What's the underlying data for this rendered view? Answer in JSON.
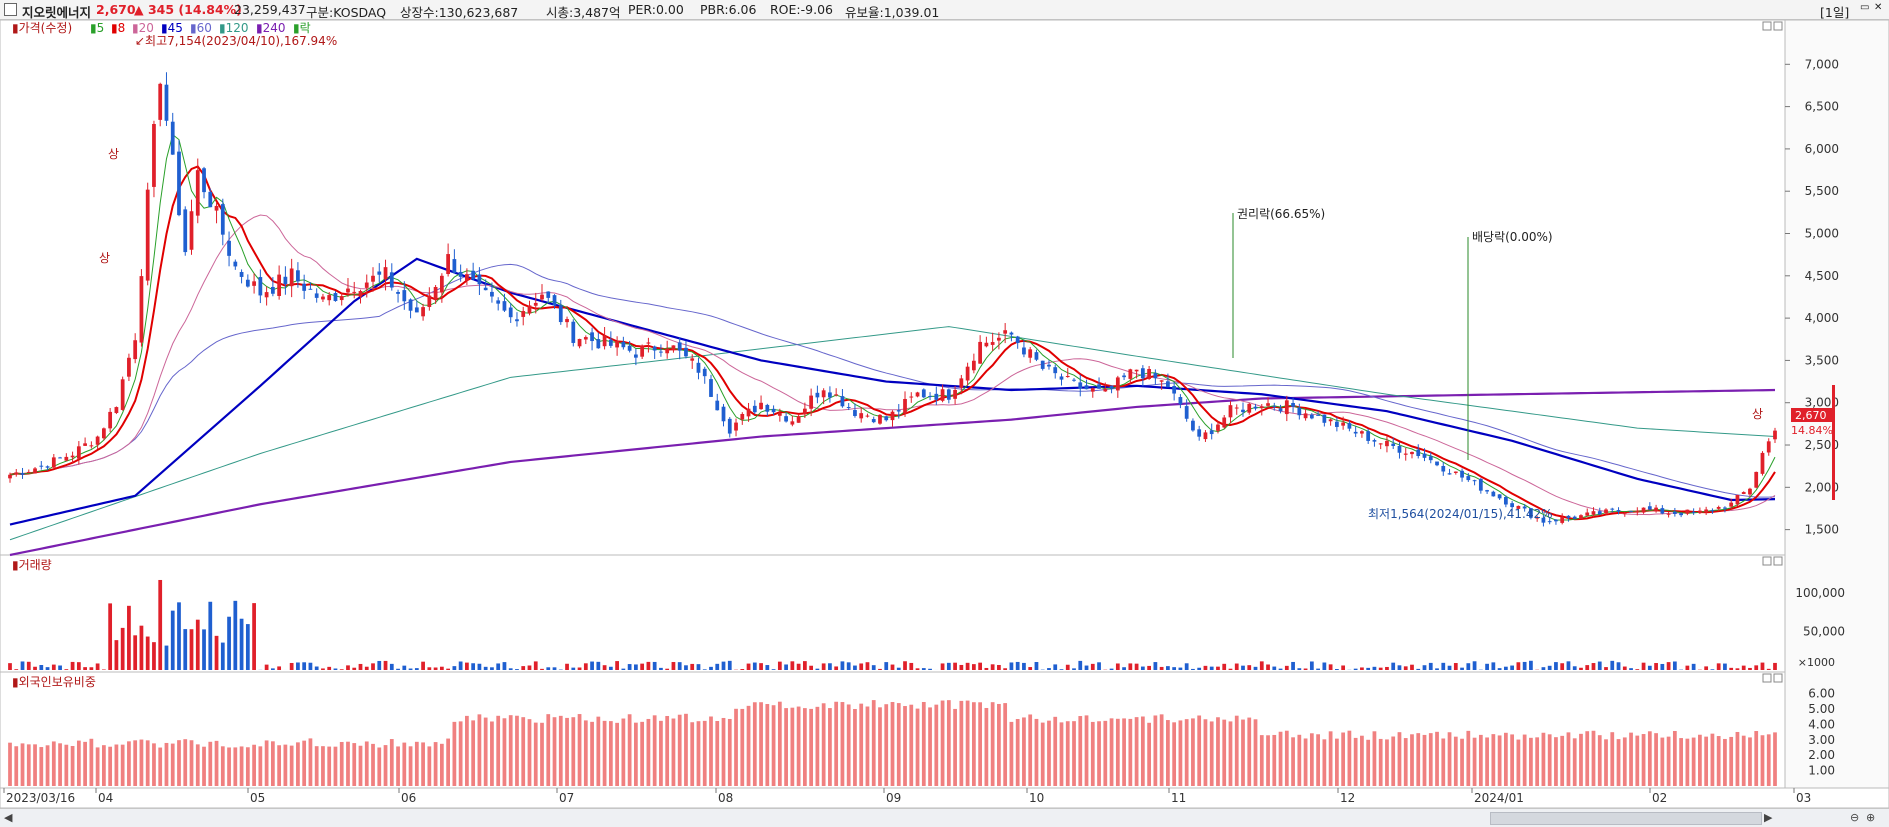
{
  "header": {
    "stock_name": "지오릿에너지",
    "price": "2,670",
    "change": "▲ 345 (14.84%)",
    "volume": "23,259,437",
    "market": "구분:KOSDAQ",
    "shares": "상장수:130,623,687",
    "mcap": "시총:3,487억",
    "per": "PER:0.00",
    "pbr": "PBR:6.06",
    "roe": "ROE:-9.06",
    "reserve": "유보율:1,039.01",
    "period_btn": "[1일]"
  },
  "legend": {
    "price_label": "가격(수정)",
    "ma": [
      {
        "label": "5",
        "color": "#2aa02a"
      },
      {
        "label": "8",
        "color": "#e00000"
      },
      {
        "label": "20",
        "color": "#cc6699"
      },
      {
        "label": "45",
        "color": "#0000c0"
      },
      {
        "label": "60",
        "color": "#6666cc"
      },
      {
        "label": "120",
        "color": "#339988"
      },
      {
        "label": "240",
        "color": "#7a1fb0"
      }
    ],
    "ex_label": "락"
  },
  "annotations": {
    "high": "최고7,154(2023/04/10),167.94%",
    "low": "최저1,564(2024/01/15),41.42%",
    "rights": "권리락(66.65%)",
    "dividend": "배당락(0.00%)",
    "upper_limit": "상",
    "last_price": "2,670",
    "last_pct": "14.84%"
  },
  "volume_panel": {
    "title": "거래량",
    "unit": "×1000"
  },
  "foreign_panel": {
    "title": "외국인보유비중"
  },
  "colors": {
    "up": "#e0202a",
    "down": "#1f5fd0",
    "ma5": "#2aa02a",
    "ma8": "#e00000",
    "ma20": "#cc6699",
    "ma45": "#0000c0",
    "ma60": "#6666cc",
    "ma120": "#339988",
    "ma240": "#7a1fb0",
    "foreign": "#f08080"
  },
  "chart_data": {
    "type": "candlestick",
    "price_axis": {
      "ticks": [
        1500,
        2000,
        2500,
        3000,
        3500,
        4000,
        4500,
        5000,
        5500,
        6000,
        6500,
        7000
      ],
      "range": [
        1200,
        7500
      ]
    },
    "volume_axis": {
      "ticks": [
        50000,
        100000
      ]
    },
    "foreign_axis": {
      "ticks": [
        1.0,
        2.0,
        3.0,
        4.0,
        5.0,
        6.0
      ]
    },
    "x_labels": [
      "2023/03/16",
      "04",
      "05",
      "06",
      "07",
      "08",
      "09",
      "10",
      "11",
      "12",
      "2024/01",
      "02",
      "03"
    ],
    "price_keypoints": [
      [
        0,
        2150
      ],
      [
        5,
        2250
      ],
      [
        10,
        2400
      ],
      [
        14,
        2600
      ],
      [
        17,
        3000
      ],
      [
        20,
        3800
      ],
      [
        22,
        5400
      ],
      [
        24,
        6900
      ],
      [
        26,
        5800
      ],
      [
        28,
        4800
      ],
      [
        30,
        5700
      ],
      [
        32,
        5400
      ],
      [
        34,
        5000
      ],
      [
        36,
        4600
      ],
      [
        40,
        4300
      ],
      [
        45,
        4500
      ],
      [
        50,
        4200
      ],
      [
        55,
        4400
      ],
      [
        60,
        4500
      ],
      [
        65,
        4000
      ],
      [
        70,
        4700
      ],
      [
        75,
        4300
      ],
      [
        80,
        4000
      ],
      [
        85,
        4300
      ],
      [
        90,
        3800
      ],
      [
        95,
        3700
      ],
      [
        100,
        3600
      ],
      [
        105,
        3700
      ],
      [
        110,
        3400
      ],
      [
        115,
        2700
      ],
      [
        120,
        3000
      ],
      [
        125,
        2800
      ],
      [
        130,
        3200
      ],
      [
        135,
        2900
      ],
      [
        140,
        2800
      ],
      [
        145,
        3100
      ],
      [
        150,
        3100
      ],
      [
        155,
        3700
      ],
      [
        160,
        3800
      ],
      [
        165,
        3400
      ],
      [
        170,
        3200
      ],
      [
        175,
        3100
      ],
      [
        180,
        3400
      ],
      [
        185,
        3200
      ],
      [
        190,
        2550
      ],
      [
        195,
        2900
      ],
      [
        200,
        3000
      ],
      [
        205,
        2950
      ],
      [
        210,
        2800
      ],
      [
        215,
        2650
      ],
      [
        220,
        2500
      ],
      [
        225,
        2400
      ],
      [
        230,
        2200
      ],
      [
        235,
        2000
      ],
      [
        240,
        1800
      ],
      [
        245,
        1600
      ],
      [
        250,
        1650
      ],
      [
        255,
        1700
      ],
      [
        260,
        1750
      ],
      [
        265,
        1700
      ],
      [
        270,
        1700
      ],
      [
        275,
        1800
      ],
      [
        278,
        2000
      ],
      [
        280,
        2400
      ],
      [
        282,
        2670
      ]
    ],
    "ma45_keypoints": [
      [
        0,
        1560
      ],
      [
        20,
        1900
      ],
      [
        40,
        3200
      ],
      [
        55,
        4200
      ],
      [
        65,
        4700
      ],
      [
        80,
        4300
      ],
      [
        100,
        3900
      ],
      [
        120,
        3500
      ],
      [
        140,
        3250
      ],
      [
        160,
        3150
      ],
      [
        180,
        3200
      ],
      [
        200,
        3100
      ],
      [
        220,
        2900
      ],
      [
        240,
        2550
      ],
      [
        260,
        2100
      ],
      [
        275,
        1850
      ],
      [
        282,
        1860
      ]
    ],
    "ma240_keypoints": [
      [
        0,
        1200
      ],
      [
        40,
        1800
      ],
      [
        80,
        2300
      ],
      [
        120,
        2600
      ],
      [
        160,
        2800
      ],
      [
        180,
        2950
      ],
      [
        200,
        3050
      ],
      [
        240,
        3100
      ],
      [
        282,
        3150
      ]
    ],
    "ma120_keypoints": [
      [
        0,
        1380
      ],
      [
        40,
        2400
      ],
      [
        80,
        3300
      ],
      [
        110,
        3550
      ],
      [
        150,
        3900
      ],
      [
        180,
        3550
      ],
      [
        220,
        3100
      ],
      [
        260,
        2700
      ],
      [
        282,
        2600
      ]
    ]
  }
}
